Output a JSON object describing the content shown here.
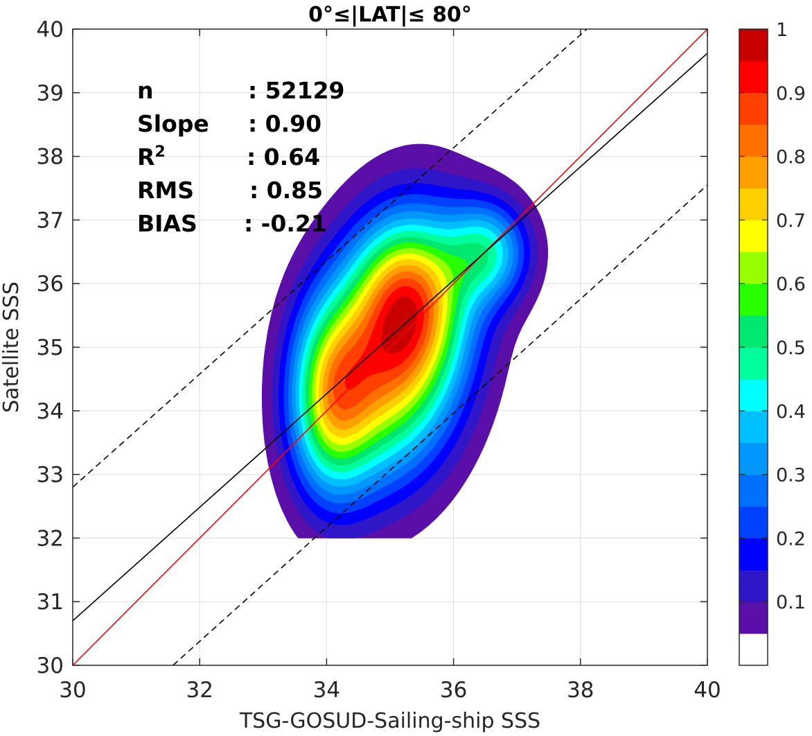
{
  "chart_data": {
    "type": "contour",
    "title": "0°≤|LAT|≤ 80°",
    "xlabel": "TSG-GOSUD-Sailing-ship SSS",
    "ylabel": "Satellite SSS",
    "xlim": [
      30,
      40
    ],
    "ylim": [
      30,
      40
    ],
    "xticks": [
      30,
      32,
      34,
      36,
      38,
      40
    ],
    "yticks": [
      30,
      31,
      32,
      33,
      34,
      35,
      36,
      37,
      38,
      39,
      40
    ],
    "grid": true,
    "stats": [
      {
        "name": "n",
        "value": ": 52129"
      },
      {
        "name": "Slope",
        "value": ": 0.90"
      },
      {
        "name": "R",
        "sup": "2",
        "value": ": 0.64"
      },
      {
        "name": "RMS",
        "value": ": 0.85"
      },
      {
        "name": "BIAS",
        "value": ": -0.21"
      }
    ],
    "lines": [
      {
        "role": "one-to-one",
        "color": "#ff0000",
        "dash": false,
        "x": [
          30,
          40
        ],
        "y": [
          30,
          40
        ]
      },
      {
        "role": "regression",
        "color": "#000000",
        "dash": false,
        "x": [
          30,
          40
        ],
        "y": [
          30.7,
          39.62
        ]
      },
      {
        "role": "upper-bound",
        "color": "#000000",
        "dash": true,
        "x": [
          30,
          38.1
        ],
        "y": [
          32.8,
          40
        ]
      },
      {
        "role": "lower-bound",
        "color": "#000000",
        "dash": true,
        "x": [
          31.58,
          40
        ],
        "y": [
          30,
          37.55
        ]
      }
    ],
    "density_peaks": [
      {
        "x": 35.1,
        "y": 35.0,
        "rx": 0.75,
        "ry": 1.35,
        "angle": -10,
        "amp": 1.0
      },
      {
        "x": 34.05,
        "y": 34.2,
        "rx": 0.45,
        "ry": 1.05,
        "angle": 0,
        "amp": 0.6
      },
      {
        "x": 36.55,
        "y": 36.5,
        "rx": 0.45,
        "ry": 0.55,
        "angle": 0,
        "amp": 0.45
      },
      {
        "x": 35.3,
        "y": 35.9,
        "rx": 0.55,
        "ry": 0.75,
        "angle": 10,
        "amp": 0.3
      }
    ],
    "colorbar": {
      "ticks": [
        0.1,
        0.2,
        0.3,
        0.4,
        0.5,
        0.6,
        0.7,
        0.8,
        0.9,
        1
      ],
      "tick_labels": [
        "0.1",
        "0.2",
        "0.3",
        "0.4",
        "0.5",
        "0.6",
        "0.7",
        "0.8",
        "0.9",
        "1"
      ],
      "levels": [
        0,
        0.05,
        0.1,
        0.15,
        0.2,
        0.25,
        0.3,
        0.35,
        0.4,
        0.45,
        0.5,
        0.55,
        0.6,
        0.65,
        0.7,
        0.75,
        0.8,
        0.85,
        0.9,
        0.95,
        1.0
      ],
      "colors": [
        "#ffffff",
        "#5a0fa8",
        "#2f17c8",
        "#0000ff",
        "#0040ff",
        "#0070ff",
        "#0098ff",
        "#00c0ff",
        "#00ffff",
        "#00ff9c",
        "#00e870",
        "#28ff00",
        "#98ff00",
        "#ffff00",
        "#ffd000",
        "#ffa000",
        "#ff7000",
        "#ff4000",
        "#ff0000",
        "#c80000",
        "#8c0000"
      ]
    }
  }
}
